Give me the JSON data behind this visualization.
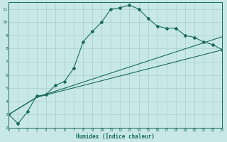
{
  "xlabel": "Humidex (Indice chaleur)",
  "bg_color": "#c8e8e8",
  "line_color": "#1a6b5a",
  "grid_color": "#a8cece",
  "xlim": [
    0,
    23
  ],
  "ylim": [
    2,
    11.5
  ],
  "xticks": [
    0,
    1,
    2,
    3,
    4,
    5,
    6,
    7,
    8,
    9,
    10,
    11,
    12,
    13,
    14,
    15,
    16,
    17,
    18,
    19,
    20,
    21,
    22,
    23
  ],
  "yticks": [
    2,
    3,
    4,
    5,
    6,
    7,
    8,
    9,
    10,
    11
  ],
  "line1_x": [
    0,
    1,
    2,
    3,
    4,
    5,
    6,
    7,
    8,
    9,
    10,
    11,
    12,
    13,
    14,
    15,
    16,
    17,
    18,
    19,
    20,
    21,
    22,
    23
  ],
  "line1_y": [
    3.0,
    2.3,
    3.2,
    4.4,
    4.5,
    5.2,
    5.5,
    6.5,
    8.5,
    9.3,
    10.0,
    11.0,
    11.1,
    11.3,
    11.0,
    10.3,
    9.7,
    9.55,
    9.55,
    9.0,
    8.85,
    8.5,
    8.3,
    7.9
  ],
  "line2_x": [
    0,
    3,
    23
  ],
  "line2_y": [
    3.0,
    4.3,
    8.9
  ],
  "line3_x": [
    0,
    3,
    23
  ],
  "line3_y": [
    3.0,
    4.3,
    7.9
  ]
}
